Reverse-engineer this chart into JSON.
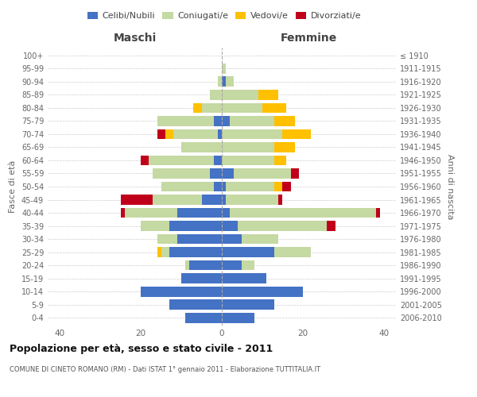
{
  "age_groups": [
    "0-4",
    "5-9",
    "10-14",
    "15-19",
    "20-24",
    "25-29",
    "30-34",
    "35-39",
    "40-44",
    "45-49",
    "50-54",
    "55-59",
    "60-64",
    "65-69",
    "70-74",
    "75-79",
    "80-84",
    "85-89",
    "90-94",
    "95-99",
    "100+"
  ],
  "birth_years": [
    "2006-2010",
    "2001-2005",
    "1996-2000",
    "1991-1995",
    "1986-1990",
    "1981-1985",
    "1976-1980",
    "1971-1975",
    "1966-1970",
    "1961-1965",
    "1956-1960",
    "1951-1955",
    "1946-1950",
    "1941-1945",
    "1936-1940",
    "1931-1935",
    "1926-1930",
    "1921-1925",
    "1916-1920",
    "1911-1915",
    "≤ 1910"
  ],
  "males": {
    "celibe": [
      9,
      13,
      20,
      10,
      8,
      13,
      11,
      13,
      11,
      5,
      2,
      3,
      2,
      0,
      1,
      2,
      0,
      0,
      0,
      0,
      0
    ],
    "coniugato": [
      0,
      0,
      0,
      0,
      1,
      2,
      5,
      7,
      13,
      12,
      13,
      14,
      16,
      10,
      11,
      14,
      5,
      3,
      1,
      0,
      0
    ],
    "vedovo": [
      0,
      0,
      0,
      0,
      0,
      1,
      0,
      0,
      0,
      0,
      0,
      0,
      0,
      0,
      2,
      0,
      2,
      0,
      0,
      0,
      0
    ],
    "divorziato": [
      0,
      0,
      0,
      0,
      0,
      0,
      0,
      0,
      1,
      8,
      0,
      0,
      2,
      0,
      2,
      0,
      0,
      0,
      0,
      0,
      0
    ]
  },
  "females": {
    "nubile": [
      8,
      13,
      20,
      11,
      5,
      13,
      5,
      4,
      2,
      1,
      1,
      3,
      0,
      0,
      0,
      2,
      0,
      0,
      1,
      0,
      0
    ],
    "coniugata": [
      0,
      0,
      0,
      0,
      3,
      9,
      9,
      22,
      36,
      13,
      12,
      14,
      13,
      13,
      15,
      11,
      10,
      9,
      2,
      1,
      0
    ],
    "vedova": [
      0,
      0,
      0,
      0,
      0,
      0,
      0,
      0,
      0,
      0,
      2,
      0,
      3,
      5,
      7,
      5,
      6,
      5,
      0,
      0,
      0
    ],
    "divorziata": [
      0,
      0,
      0,
      0,
      0,
      0,
      0,
      2,
      1,
      1,
      2,
      2,
      0,
      0,
      0,
      0,
      0,
      0,
      0,
      0,
      0
    ]
  },
  "color_celibe": "#4472c4",
  "color_coniugato": "#c5d9a3",
  "color_vedovo": "#ffc000",
  "color_divorziato": "#c0001a",
  "xlim": 43,
  "title": "Popolazione per età, sesso e stato civile - 2011",
  "subtitle": "COMUNE DI CINETO ROMANO (RM) - Dati ISTAT 1° gennaio 2011 - Elaborazione TUTTITALIA.IT",
  "ylabel": "Fasce di età",
  "ylabel_right": "Anni di nascita",
  "xlabel_left": "Maschi",
  "xlabel_right": "Femmine"
}
